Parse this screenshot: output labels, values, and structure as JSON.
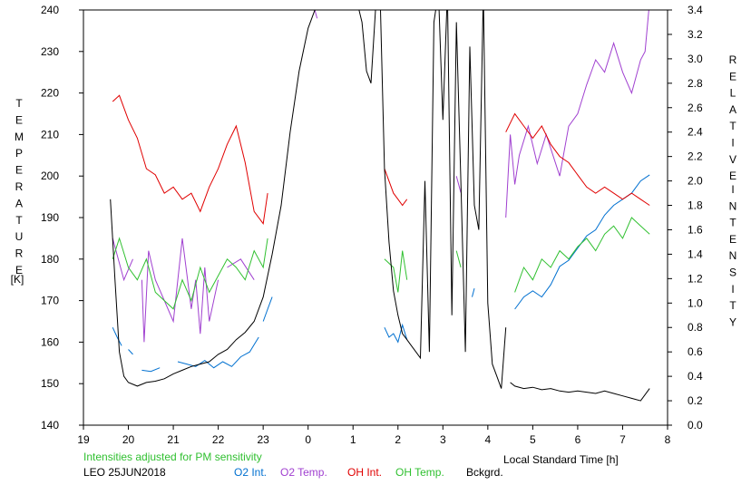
{
  "chart_data": {
    "type": "line",
    "xlabel": "Local Standard Time [h]",
    "xlim": [
      19,
      32
    ],
    "x_tick_labels": [
      "19",
      "20",
      "21",
      "22",
      "23",
      "0",
      "1",
      "2",
      "3",
      "4",
      "5",
      "6",
      "7",
      "8"
    ],
    "ylabel_left": "TEMPERATURE [K]",
    "ylim_left": [
      140,
      240
    ],
    "y_tick_labels_left": [
      "140",
      "150",
      "160",
      "170",
      "180",
      "190",
      "200",
      "210",
      "220",
      "230",
      "240"
    ],
    "ylabel_right": "RELATIVE INTENSITY",
    "ylim_right": [
      0.0,
      3.4
    ],
    "y_tick_labels_right": [
      "0.0",
      "0.2",
      "0.4",
      "0.6",
      "0.8",
      "1.0",
      "1.2",
      "1.4",
      "1.6",
      "1.8",
      "2.0",
      "2.2",
      "2.4",
      "2.6",
      "2.8",
      "3.0",
      "3.2",
      "3.4"
    ],
    "note": "Intensities adjusted for PM sensitivity",
    "station_label": "LEO 25JUN2018",
    "grid": false,
    "colors": {
      "o2_int": "#0070d0",
      "o2_temp": "#a040d0",
      "oh_int": "#e00000",
      "oh_temp": "#30c030",
      "bckgrd": "#000000",
      "note": "#30c030"
    },
    "series": [
      {
        "name": "O2 Int.",
        "axis": "right",
        "segments": [
          {
            "x": [
              19.65,
              19.75,
              19.85
            ],
            "y": [
              0.8,
              0.72,
              0.65
            ]
          },
          {
            "x": [
              20.0,
              20.1
            ],
            "y": [
              0.62,
              0.58
            ]
          },
          {
            "x": [
              20.3,
              20.5,
              20.7
            ],
            "y": [
              0.45,
              0.44,
              0.47
            ]
          },
          {
            "x": [
              21.1,
              21.3,
              21.5,
              21.7,
              21.9,
              22.1,
              22.3,
              22.5,
              22.7,
              22.9
            ],
            "y": [
              0.52,
              0.5,
              0.48,
              0.53,
              0.47,
              0.52,
              0.48,
              0.56,
              0.6,
              0.72
            ]
          },
          {
            "x": [
              23.0,
              23.1,
              23.2
            ],
            "y": [
              0.85,
              0.95,
              1.05
            ]
          },
          {
            "x": [
              25.7,
              25.8,
              25.9,
              26.0,
              26.1,
              26.2
            ],
            "y": [
              0.8,
              0.72,
              0.75,
              0.68,
              0.82,
              0.7
            ]
          },
          {
            "x": [
              27.65,
              27.7
            ],
            "y": [
              1.05,
              1.12
            ]
          },
          {
            "x": [
              28.6,
              28.8,
              29.0,
              29.2,
              29.4,
              29.6,
              29.8,
              30.0,
              30.2,
              30.4,
              30.6,
              30.8,
              31.0,
              31.2,
              31.4,
              31.6
            ],
            "y": [
              0.95,
              1.05,
              1.1,
              1.05,
              1.15,
              1.3,
              1.35,
              1.45,
              1.55,
              1.6,
              1.72,
              1.8,
              1.85,
              1.9,
              2.0,
              2.05
            ]
          }
        ]
      },
      {
        "name": "O2 Temp.",
        "axis": "left",
        "segments": [
          {
            "x": [
              19.65,
              19.9,
              20.1
            ],
            "y": [
              185,
              175,
              180
            ]
          },
          {
            "x": [
              20.3,
              20.35,
              20.45,
              20.6,
              20.8,
              21.0,
              21.2,
              21.4,
              21.5,
              21.6,
              21.7,
              21.8,
              22.0
            ],
            "y": [
              175,
              160,
              182,
              175,
              170,
              165,
              185,
              168,
              175,
              162,
              178,
              165,
              175
            ]
          },
          {
            "x": [
              22.2,
              22.5,
              22.8
            ],
            "y": [
              178,
              180,
              175
            ]
          },
          {
            "x": [
              24.1,
              24.2
            ],
            "y": [
              242,
              238
            ]
          },
          {
            "x": [
              27.3,
              27.4
            ],
            "y": [
              200,
              196
            ]
          },
          {
            "x": [
              28.4,
              28.5,
              28.6,
              28.7,
              28.9,
              29.1,
              29.3,
              29.6,
              29.8,
              30.0,
              30.2,
              30.4,
              30.6,
              30.8,
              31.0,
              31.2,
              31.4,
              31.5,
              31.6
            ],
            "y": [
              190,
              210,
              198,
              205,
              212,
              203,
              210,
              200,
              212,
              215,
              222,
              228,
              225,
              232,
              225,
              220,
              228,
              230,
              242
            ]
          }
        ]
      },
      {
        "name": "OH Int.",
        "axis": "right",
        "segments": [
          {
            "x": [
              19.65,
              19.8,
              20.0,
              20.2,
              20.4,
              20.6,
              20.8,
              21.0,
              21.2,
              21.4,
              21.6,
              21.8,
              22.0,
              22.2,
              22.4,
              22.6,
              22.8,
              23.0,
              23.1
            ],
            "y": [
              2.65,
              2.7,
              2.5,
              2.35,
              2.1,
              2.05,
              1.9,
              1.95,
              1.85,
              1.9,
              1.75,
              1.95,
              2.1,
              2.3,
              2.45,
              2.15,
              1.75,
              1.65,
              1.9
            ]
          },
          {
            "x": [
              25.7,
              25.9,
              26.0,
              26.1,
              26.2
            ],
            "y": [
              2.1,
              1.9,
              1.85,
              1.8,
              1.85
            ]
          },
          {
            "x": [
              28.4,
              28.6,
              28.8,
              29.0,
              29.2,
              29.4,
              29.6,
              29.8,
              30.0,
              30.2,
              30.4,
              30.6,
              30.8,
              31.0,
              31.2,
              31.4,
              31.6
            ],
            "y": [
              2.4,
              2.55,
              2.45,
              2.35,
              2.45,
              2.3,
              2.2,
              2.15,
              2.05,
              1.95,
              1.9,
              1.95,
              1.9,
              1.85,
              1.9,
              1.85,
              1.8
            ]
          }
        ]
      },
      {
        "name": "OH Temp.",
        "axis": "left",
        "segments": [
          {
            "x": [
              19.65,
              19.8,
              20.0,
              20.2,
              20.4,
              20.6,
              20.8,
              21.0,
              21.2,
              21.4,
              21.6,
              21.8,
              22.0,
              22.2,
              22.4,
              22.6,
              22.8,
              23.0,
              23.1
            ],
            "y": [
              180,
              185,
              178,
              175,
              180,
              172,
              170,
              168,
              175,
              170,
              178,
              172,
              176,
              180,
              178,
              175,
              182,
              178,
              185
            ]
          },
          {
            "x": [
              25.7,
              25.9,
              26.0,
              26.1,
              26.2
            ],
            "y": [
              180,
              178,
              172,
              182,
              175
            ]
          },
          {
            "x": [
              27.3,
              27.4
            ],
            "y": [
              182,
              178
            ]
          },
          {
            "x": [
              28.6,
              28.8,
              29.0,
              29.2,
              29.4,
              29.6,
              29.8,
              30.0,
              30.2,
              30.4,
              30.6,
              30.8,
              31.0,
              31.2,
              31.4,
              31.6
            ],
            "y": [
              172,
              178,
              175,
              180,
              178,
              182,
              180,
              183,
              185,
              182,
              186,
              188,
              185,
              190,
              188,
              186
            ]
          }
        ]
      },
      {
        "name": "Bckgrd.",
        "axis": "right",
        "segments": [
          {
            "x": [
              19.6,
              19.7,
              19.8,
              19.9,
              20.0,
              20.2,
              20.4,
              20.6,
              20.8,
              21.0,
              21.2,
              21.4,
              21.6,
              21.8,
              22.0,
              22.2,
              22.4,
              22.6,
              22.8,
              23.0,
              23.2,
              23.4,
              23.6,
              23.8,
              24.0,
              24.2,
              24.4,
              24.6
            ],
            "y": [
              1.85,
              1.2,
              0.6,
              0.4,
              0.35,
              0.32,
              0.35,
              0.36,
              0.38,
              0.42,
              0.45,
              0.48,
              0.5,
              0.52,
              0.58,
              0.62,
              0.7,
              0.76,
              0.85,
              1.05,
              1.4,
              1.8,
              2.4,
              2.9,
              3.25,
              3.45,
              3.55,
              3.55
            ]
          },
          {
            "x": [
              25.0,
              25.1,
              25.2,
              25.3,
              25.4,
              25.5,
              25.6,
              25.7,
              25.8,
              25.9,
              26.0,
              26.1,
              26.2,
              26.3,
              26.4,
              26.5,
              26.6,
              26.7,
              26.8,
              26.9,
              27.0,
              27.1,
              27.2,
              27.3,
              27.4,
              27.5,
              27.6,
              27.7,
              27.8,
              27.9,
              28.0,
              28.1,
              28.2,
              28.3,
              28.4
            ],
            "y": [
              3.55,
              3.45,
              3.3,
              2.9,
              2.8,
              3.4,
              3.55,
              2.1,
              1.5,
              1.1,
              0.9,
              0.75,
              0.7,
              0.65,
              0.6,
              0.55,
              2.0,
              0.6,
              3.3,
              3.55,
              2.5,
              3.55,
              0.9,
              3.3,
              2.0,
              0.6,
              3.1,
              1.8,
              1.6,
              3.55,
              1.0,
              0.5,
              0.4,
              0.3,
              0.8
            ]
          },
          {
            "x": [
              28.5,
              28.6,
              28.8,
              29.0,
              29.2,
              29.4,
              29.6,
              29.8,
              30.0,
              30.2,
              30.4,
              30.6,
              30.8,
              31.0,
              31.2,
              31.4,
              31.6
            ],
            "y": [
              0.35,
              0.32,
              0.3,
              0.31,
              0.29,
              0.3,
              0.28,
              0.27,
              0.28,
              0.27,
              0.26,
              0.28,
              0.26,
              0.24,
              0.22,
              0.2,
              0.3
            ]
          }
        ]
      }
    ]
  },
  "footer": {
    "note": "Intensities adjusted for PM sensitivity",
    "station": "LEO 25JUN2018",
    "legend": {
      "o2_int": "O2 Int.",
      "o2_temp": "O2 Temp.",
      "oh_int": "OH Int.",
      "oh_temp": "OH Temp.",
      "bckgrd": "Bckgrd."
    },
    "xlabel": "Local Standard Time [h]"
  }
}
